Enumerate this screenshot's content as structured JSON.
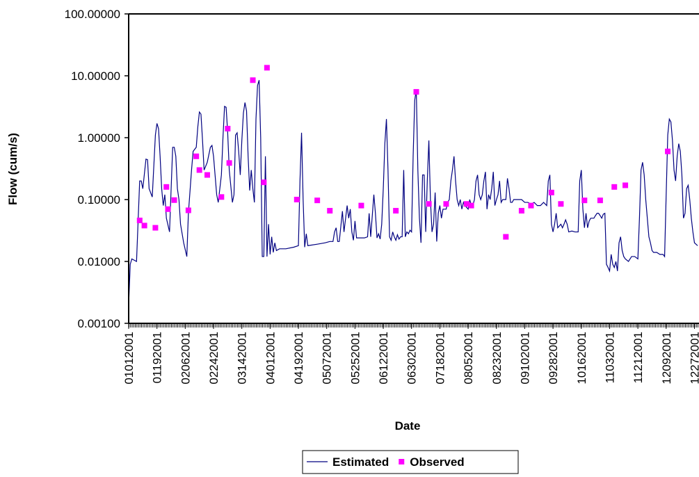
{
  "chart_data": {
    "type": "line",
    "x_label": "Date",
    "y_label": "Flow (cum/s)",
    "log_y": true,
    "ylim": [
      0.001,
      100
    ],
    "yticks": [
      {
        "value": 0.001,
        "label": "0.00100"
      },
      {
        "value": 0.01,
        "label": "0.01000"
      },
      {
        "value": 0.1,
        "label": "0.10000"
      },
      {
        "value": 1,
        "label": "1.00000"
      },
      {
        "value": 10,
        "label": "10.00000"
      },
      {
        "value": 100,
        "label": "100.00000"
      }
    ],
    "xlim": [
      0,
      362
    ],
    "xticks": [
      {
        "value": 0,
        "label": "01012001"
      },
      {
        "value": 18,
        "label": "01192001"
      },
      {
        "value": 36,
        "label": "02062001"
      },
      {
        "value": 54,
        "label": "02242001"
      },
      {
        "value": 72,
        "label": "03142001"
      },
      {
        "value": 90,
        "label": "04012001"
      },
      {
        "value": 108,
        "label": "04192001"
      },
      {
        "value": 126,
        "label": "05072001"
      },
      {
        "value": 144,
        "label": "05252001"
      },
      {
        "value": 162,
        "label": "06122001"
      },
      {
        "value": 180,
        "label": "06302001"
      },
      {
        "value": 198,
        "label": "07182001"
      },
      {
        "value": 216,
        "label": "08052001"
      },
      {
        "value": 234,
        "label": "08232001"
      },
      {
        "value": 252,
        "label": "09102001"
      },
      {
        "value": 270,
        "label": "09282001"
      },
      {
        "value": 288,
        "label": "10162001"
      },
      {
        "value": 306,
        "label": "11032001"
      },
      {
        "value": 324,
        "label": "11212001"
      },
      {
        "value": 342,
        "label": "12092001"
      },
      {
        "value": 360,
        "label": "12272001"
      }
    ],
    "legend": "bottom",
    "series": [
      {
        "name": "Estimated",
        "color": "#000080",
        "type": "line",
        "x": [
          0,
          1,
          2,
          5,
          7,
          8,
          9,
          11,
          12,
          13,
          15,
          17,
          18,
          19,
          20,
          21,
          22,
          23,
          24,
          26,
          28,
          29,
          30,
          31,
          32,
          33,
          35,
          37,
          38,
          40,
          41,
          43,
          44,
          45,
          46,
          47,
          48,
          50,
          52,
          53,
          54,
          56,
          57,
          59,
          60,
          61,
          62,
          63,
          64,
          66,
          67,
          68,
          69,
          70,
          71,
          72,
          73,
          74,
          75,
          76,
          77,
          78,
          79,
          80,
          81,
          82,
          83,
          84,
          85,
          86,
          87,
          88,
          89,
          90,
          91,
          92,
          93,
          94,
          96,
          100,
          105,
          108,
          109,
          110,
          111,
          112,
          113,
          114,
          120,
          125,
          128,
          130,
          131,
          132,
          133,
          134,
          136,
          137,
          139,
          140,
          141,
          142,
          143,
          144,
          145,
          150,
          152,
          153,
          154,
          156,
          157,
          158,
          159,
          160,
          161,
          162,
          163,
          164,
          165,
          166,
          167,
          168,
          169,
          170,
          171,
          172,
          173,
          174,
          175,
          176,
          177,
          178,
          179,
          180,
          181,
          182,
          183,
          184,
          185,
          186,
          187,
          188,
          189,
          190,
          191,
          192,
          193,
          194,
          195,
          196,
          197,
          198,
          199,
          200,
          202,
          203,
          204,
          205,
          206,
          207,
          208,
          209,
          210,
          211,
          212,
          213,
          214,
          216,
          217,
          218,
          219,
          220,
          221,
          222,
          223,
          224,
          225,
          226,
          227,
          228,
          229,
          230,
          231,
          232,
          233,
          234,
          235,
          236,
          237,
          238,
          239,
          240,
          241,
          242,
          243,
          244,
          245,
          246,
          248,
          250,
          252,
          254,
          256,
          258,
          260,
          262,
          264,
          266,
          267,
          268,
          269,
          270,
          271,
          272,
          273,
          275,
          276,
          277,
          278,
          279,
          280,
          282,
          284,
          286,
          287,
          288,
          289,
          290,
          291,
          292,
          293,
          294,
          296,
          297,
          298,
          299,
          300,
          301,
          302,
          303,
          304,
          305,
          306,
          307,
          308,
          309,
          310,
          311,
          312,
          313,
          314,
          315,
          316,
          318,
          320,
          322,
          324,
          325,
          326,
          327,
          328,
          329,
          330,
          331,
          332,
          333,
          334,
          336,
          338,
          340,
          341,
          342,
          343,
          344,
          345,
          346,
          347,
          348,
          349,
          350,
          351,
          352,
          353,
          354,
          355,
          356,
          357,
          358,
          359,
          360,
          362
        ],
        "values": [
          0.002,
          0.009,
          0.011,
          0.01,
          0.2,
          0.2,
          0.15,
          0.45,
          0.44,
          0.15,
          0.11,
          1.1,
          1.7,
          1.4,
          0.5,
          0.15,
          0.08,
          0.12,
          0.05,
          0.03,
          0.7,
          0.7,
          0.5,
          0.15,
          0.1,
          0.04,
          0.02,
          0.012,
          0.06,
          0.3,
          0.6,
          0.7,
          1.5,
          2.6,
          2.4,
          0.9,
          0.3,
          0.4,
          0.7,
          0.75,
          0.5,
          0.12,
          0.09,
          0.25,
          1.0,
          3.2,
          3.1,
          1.2,
          0.3,
          0.09,
          0.12,
          1.1,
          1.2,
          0.6,
          0.25,
          0.9,
          2.5,
          3.7,
          2.7,
          0.5,
          0.14,
          0.3,
          0.15,
          0.09,
          2.0,
          7.0,
          8.5,
          1.0,
          0.012,
          0.012,
          0.5,
          0.012,
          0.04,
          0.013,
          0.025,
          0.014,
          0.02,
          0.015,
          0.016,
          0.016,
          0.017,
          0.018,
          0.2,
          1.2,
          0.1,
          0.017,
          0.028,
          0.018,
          0.019,
          0.02,
          0.021,
          0.021,
          0.03,
          0.035,
          0.021,
          0.021,
          0.065,
          0.03,
          0.08,
          0.05,
          0.07,
          0.03,
          0.022,
          0.045,
          0.024,
          0.024,
          0.025,
          0.06,
          0.025,
          0.12,
          0.06,
          0.024,
          0.028,
          0.023,
          0.04,
          0.15,
          0.8,
          2.0,
          0.3,
          0.025,
          0.022,
          0.03,
          0.025,
          0.022,
          0.027,
          0.023,
          0.025,
          0.025,
          0.3,
          0.025,
          0.03,
          0.028,
          0.032,
          0.03,
          0.5,
          4.0,
          6.0,
          0.3,
          0.05,
          0.02,
          0.25,
          0.25,
          0.03,
          0.2,
          0.9,
          0.1,
          0.03,
          0.04,
          0.13,
          0.021,
          0.06,
          0.08,
          0.05,
          0.07,
          0.07,
          0.09,
          0.1,
          0.2,
          0.3,
          0.5,
          0.2,
          0.1,
          0.08,
          0.1,
          0.07,
          0.09,
          0.08,
          0.07,
          0.1,
          0.08,
          0.08,
          0.1,
          0.2,
          0.25,
          0.12,
          0.1,
          0.12,
          0.2,
          0.28,
          0.07,
          0.12,
          0.1,
          0.15,
          0.28,
          0.08,
          0.1,
          0.12,
          0.2,
          0.09,
          0.1,
          0.1,
          0.1,
          0.22,
          0.15,
          0.09,
          0.09,
          0.1,
          0.1,
          0.1,
          0.1,
          0.09,
          0.09,
          0.085,
          0.09,
          0.08,
          0.08,
          0.09,
          0.08,
          0.2,
          0.25,
          0.04,
          0.03,
          0.04,
          0.06,
          0.035,
          0.04,
          0.035,
          0.04,
          0.047,
          0.04,
          0.03,
          0.031,
          0.03,
          0.03,
          0.2,
          0.3,
          0.07,
          0.035,
          0.06,
          0.035,
          0.045,
          0.05,
          0.05,
          0.055,
          0.06,
          0.06,
          0.055,
          0.05,
          0.058,
          0.06,
          0.009,
          0.008,
          0.007,
          0.013,
          0.009,
          0.008,
          0.01,
          0.007,
          0.02,
          0.025,
          0.015,
          0.012,
          0.011,
          0.01,
          0.012,
          0.012,
          0.011,
          0.05,
          0.3,
          0.4,
          0.25,
          0.1,
          0.05,
          0.025,
          0.02,
          0.015,
          0.014,
          0.014,
          0.013,
          0.013,
          0.012,
          0.12,
          1.1,
          2.0,
          1.8,
          0.9,
          0.3,
          0.2,
          0.5,
          0.8,
          0.6,
          0.25,
          0.05,
          0.06,
          0.15,
          0.17,
          0.1,
          0.05,
          0.03,
          0.02,
          0.018
        ]
      },
      {
        "name": "Observed",
        "color": "#ff00ff",
        "type": "scatter",
        "x": [
          7,
          10,
          17,
          24,
          25,
          29,
          38,
          43,
          45,
          50,
          59,
          63,
          64,
          79,
          86,
          88,
          107,
          120,
          128,
          148,
          170,
          183,
          191,
          202,
          215,
          218,
          240,
          250,
          256,
          269,
          275,
          290,
          300,
          309,
          316,
          343
        ],
        "values": [
          0.046,
          0.038,
          0.035,
          0.16,
          0.07,
          0.098,
          0.067,
          0.5,
          0.3,
          0.25,
          0.11,
          1.4,
          0.39,
          8.5,
          0.19,
          13.5,
          0.1,
          0.097,
          0.066,
          0.08,
          0.066,
          5.5,
          0.085,
          0.085,
          0.085,
          0.08,
          0.025,
          0.066,
          0.08,
          0.13,
          0.085,
          0.097,
          0.097,
          0.16,
          0.17,
          0.6
        ]
      }
    ]
  }
}
